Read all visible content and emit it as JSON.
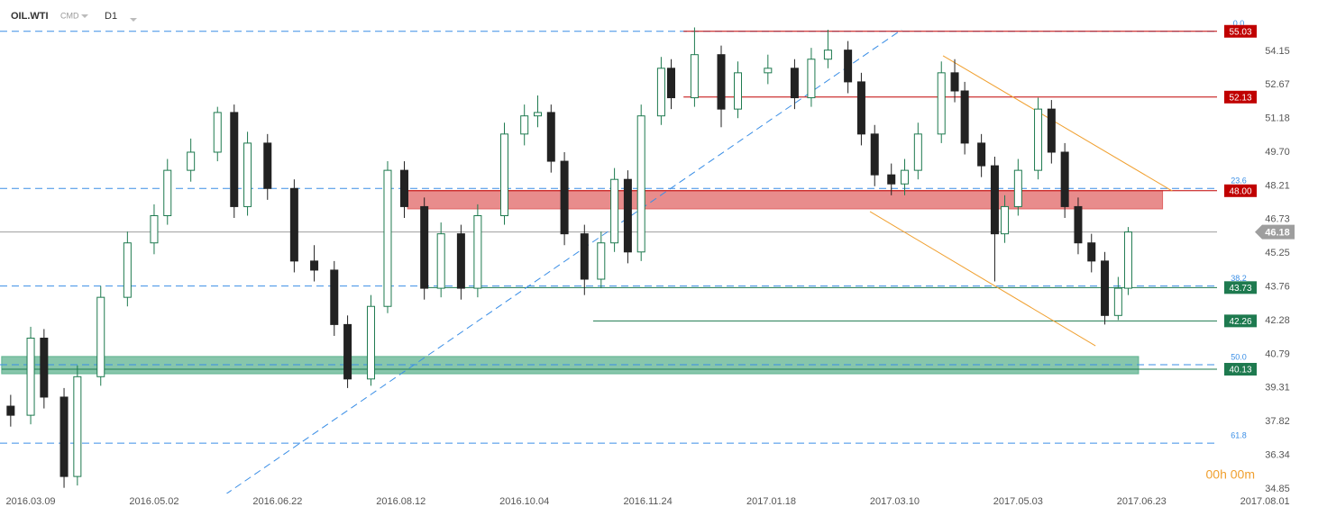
{
  "chart_data": {
    "type": "candlestick",
    "header": {
      "symbol": "OIL.WTI",
      "group": "CMD",
      "interval": "D1"
    },
    "timer": "00h 00m",
    "x": [
      -6,
      0,
      4,
      10,
      14,
      21,
      29,
      37,
      41,
      48,
      56,
      61,
      65,
      71,
      79,
      85,
      91,
      95,
      102,
      107,
      112,
      118,
      123,
      129,
      134,
      142,
      148,
      152,
      156,
      160,
      166,
      171,
      175,
      179,
      183,
      189,
      192,
      199,
      207,
      212,
      221,
      229,
      234,
      239,
      245,
      249,
      253,
      258,
      262,
      266,
      273,
      277,
      280,
      285,
      289,
      292,
      296,
      302,
      306,
      310,
      314,
      318,
      322,
      326,
      329
    ],
    "open": [
      38.5,
      38.1,
      41.5,
      38.9,
      35.4,
      39.8,
      43.3,
      45.7,
      46.9,
      48.9,
      49.7,
      51.45,
      47.3,
      50.1,
      48.1,
      44.9,
      44.5,
      42.1,
      39.7,
      42.9,
      48.9,
      47.3,
      43.7,
      46.1,
      43.7,
      46.9,
      50.5,
      51.3,
      51.45,
      49.3,
      46.1,
      44.1,
      45.7,
      48.5,
      45.3,
      51.3,
      53.4,
      52.1,
      54.0,
      51.6,
      53.2,
      53.4,
      52.1,
      53.8,
      54.2,
      52.8,
      50.5,
      48.7,
      48.3,
      48.9,
      50.5,
      53.2,
      52.4,
      50.1,
      49.1,
      46.1,
      47.3,
      48.9,
      51.6,
      49.7,
      47.3,
      45.7,
      44.9,
      42.5,
      43.7
    ],
    "high": [
      39.0,
      42.0,
      41.9,
      39.3,
      40.3,
      43.8,
      46.2,
      47.4,
      49.4,
      50.3,
      51.7,
      51.8,
      50.6,
      50.5,
      48.5,
      45.6,
      44.9,
      42.5,
      43.4,
      49.3,
      49.3,
      47.7,
      46.6,
      46.5,
      47.4,
      51.0,
      51.8,
      52.2,
      51.8,
      49.7,
      46.5,
      46.2,
      49.0,
      48.9,
      51.8,
      53.9,
      53.8,
      55.2,
      54.4,
      53.7,
      54.0,
      53.8,
      54.3,
      55.1,
      54.6,
      53.2,
      50.9,
      49.2,
      49.4,
      51.0,
      53.7,
      53.8,
      52.8,
      50.5,
      49.5,
      47.8,
      49.4,
      52.1,
      52.0,
      50.1,
      47.7,
      46.1,
      45.3,
      44.2,
      46.4
    ],
    "low": [
      37.6,
      37.7,
      38.4,
      34.9,
      35.0,
      39.4,
      42.9,
      45.2,
      46.5,
      48.4,
      49.3,
      46.8,
      46.9,
      47.6,
      44.4,
      44.0,
      41.6,
      39.3,
      39.4,
      42.6,
      46.8,
      43.2,
      43.3,
      43.2,
      43.3,
      46.5,
      50.0,
      50.8,
      48.8,
      45.6,
      43.4,
      43.7,
      45.3,
      44.8,
      44.9,
      50.9,
      51.6,
      51.7,
      50.8,
      51.2,
      52.7,
      51.6,
      51.7,
      53.4,
      52.3,
      50.0,
      48.2,
      47.8,
      47.8,
      48.5,
      50.1,
      51.9,
      49.6,
      48.6,
      44.0,
      45.7,
      46.9,
      48.5,
      49.2,
      46.8,
      45.2,
      44.4,
      42.1,
      42.3,
      43.4
    ],
    "close": [
      38.1,
      41.5,
      38.9,
      35.4,
      39.8,
      43.3,
      45.7,
      46.9,
      48.9,
      49.7,
      51.45,
      47.3,
      50.1,
      48.1,
      44.9,
      44.5,
      42.1,
      39.7,
      42.9,
      48.9,
      47.3,
      43.7,
      46.1,
      43.7,
      46.9,
      50.5,
      51.3,
      51.45,
      49.3,
      46.1,
      44.1,
      45.7,
      48.5,
      45.3,
      51.3,
      53.4,
      52.1,
      54.0,
      51.6,
      53.2,
      53.4,
      52.1,
      53.8,
      54.2,
      52.8,
      50.5,
      48.7,
      48.3,
      48.9,
      50.5,
      53.2,
      52.4,
      50.1,
      49.1,
      46.1,
      47.3,
      48.9,
      51.6,
      49.7,
      47.3,
      45.7,
      44.9,
      42.5,
      43.7,
      46.18
    ],
    "up_color": "#1e7a4f",
    "down_color": "#222222",
    "xlim": [
      -9.2,
      385.9
    ],
    "ylim": [
      34.65,
      56.41
    ],
    "xticks": [
      {
        "value": 0,
        "label": "2016.03.09"
      },
      {
        "value": 37,
        "label": "2016.05.02"
      },
      {
        "value": 74,
        "label": "2016.06.22"
      },
      {
        "value": 111,
        "label": "2016.08.12"
      },
      {
        "value": 148,
        "label": "2016.10.04"
      },
      {
        "value": 185,
        "label": "2016.11.24"
      },
      {
        "value": 222,
        "label": "2017.01.18"
      },
      {
        "value": 259,
        "label": "2017.03.10"
      },
      {
        "value": 296,
        "label": "2017.05.03"
      },
      {
        "value": 333,
        "label": "2017.06.23"
      },
      {
        "value": 370,
        "label": "2017.08.01"
      }
    ],
    "yticks": [
      34.85,
      36.34,
      37.82,
      39.31,
      40.79,
      42.28,
      43.76,
      45.25,
      46.73,
      48.21,
      {
        "value": 49.7,
        "label": "49.70"
      },
      51.18,
      52.67,
      54.15
    ],
    "levels": [
      {
        "price": 55.03,
        "label": "55.03",
        "color": "#c00000",
        "start": 195.7
      },
      {
        "price": 52.13,
        "label": "52.13",
        "color": "#c00000",
        "start": 195.7
      },
      {
        "price": 48.0,
        "label": "48.00",
        "color": "#c00000",
        "start": 113
      },
      {
        "price": 46.18,
        "label": "46.18",
        "color": "#9e9e9e",
        "start": -9.2
      },
      {
        "price": 43.73,
        "label": "43.73",
        "color": "#1e7a4f",
        "start": 117.8
      },
      {
        "price": 42.26,
        "label": "42.26",
        "color": "#1e7a4f",
        "start": 168.6
      },
      {
        "price": 40.13,
        "label": "40.13",
        "color": "#1e7a4f",
        "start": -8.7
      }
    ],
    "zones": [
      {
        "low": 47.2,
        "high": 48.0,
        "start": 113,
        "end": 339.3,
        "color": "#e06666"
      },
      {
        "low": 39.93,
        "high": 40.69,
        "start": -8.7,
        "end": 332.1,
        "color": "#5fb38f"
      }
    ],
    "fibonacci": [
      {
        "label": "0.0",
        "price": 55.03
      },
      {
        "label": "23.6",
        "price": 48.1
      },
      {
        "label": "38.2",
        "price": 43.8
      },
      {
        "label": "50.0",
        "price": 40.33
      },
      {
        "label": "61.8",
        "price": 36.87
      }
    ],
    "trendlines": [
      {
        "x": [
          58.4,
          261.1
        ],
        "y": [
          34.61,
          55.1
        ],
        "color": "#3a8ee6",
        "dashed": true
      },
      {
        "x": [
          273.5,
          342.2
        ],
        "y": [
          53.95,
          47.99
        ],
        "color": "#f0a030",
        "dashed": false
      },
      {
        "x": [
          251.6,
          319.2
        ],
        "y": [
          47.08,
          41.16
        ],
        "color": "#f0a030",
        "dashed": false
      }
    ]
  }
}
